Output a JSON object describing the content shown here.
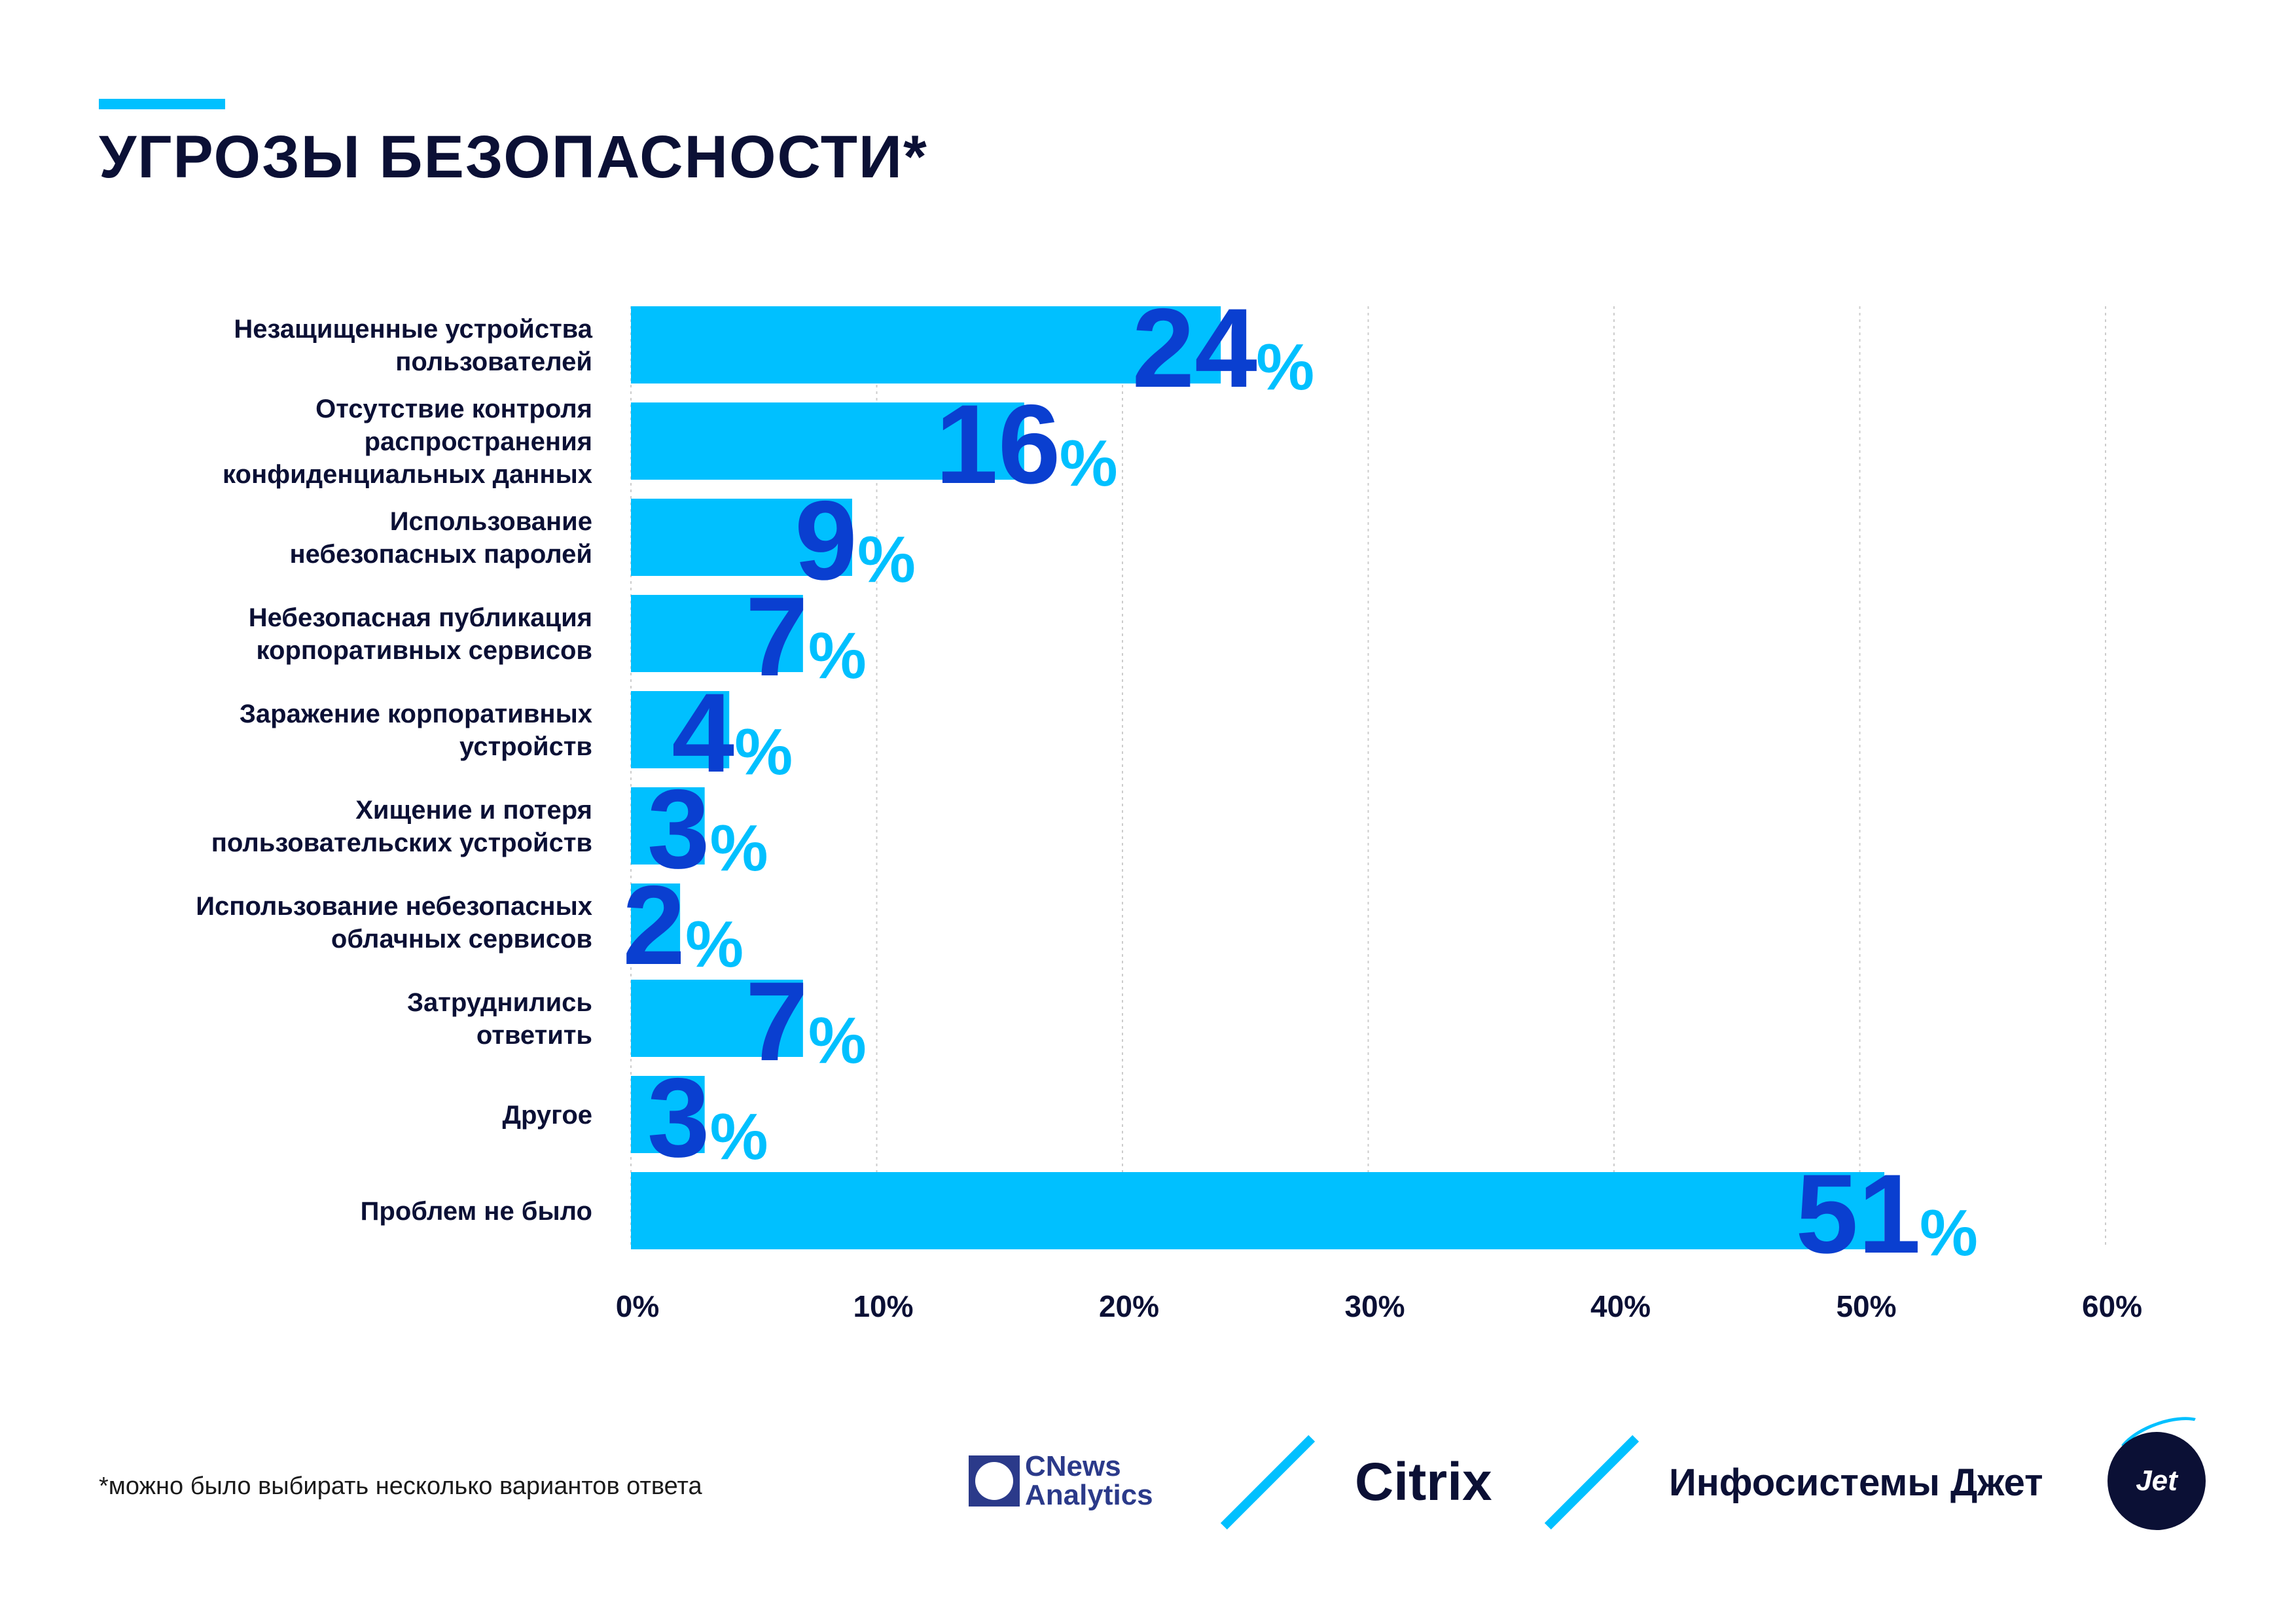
{
  "header": {
    "title": "УГРОЗЫ БЕЗОПАСНОСТИ*"
  },
  "colors": {
    "bar": "#00c0ff",
    "value": "#0a3fd0",
    "percent": "#00c0ff",
    "text": "#0b1035",
    "grid": "#cccccc"
  },
  "chart_data": {
    "type": "bar",
    "orientation": "horizontal",
    "title": "УГРОЗЫ БЕЗОПАСНОСТИ*",
    "categories": [
      [
        "Незащищенные устройства",
        "пользователей"
      ],
      [
        "Отсутствие контроля",
        "распространения",
        "конфиденциальных данных"
      ],
      [
        "Использование",
        "небезопасных паролей"
      ],
      [
        "Небезопасная публикация",
        "корпоративных сервисов"
      ],
      [
        "Заражение корпоративных",
        "устройств"
      ],
      [
        "Хищение и потеря",
        "пользовательских устройств"
      ],
      [
        "Использование небезопасных",
        "облачных сервисов"
      ],
      [
        "Затруднились",
        "ответить"
      ],
      [
        "Другое"
      ],
      [
        "Проблем не было"
      ]
    ],
    "values": [
      24,
      16,
      9,
      7,
      4,
      3,
      2,
      7,
      3,
      51
    ],
    "value_labels": [
      "24",
      "16",
      "9",
      "7",
      "4",
      "3",
      "2",
      "7",
      "3",
      "51"
    ],
    "percent_sign": "%",
    "xlim": [
      0,
      60
    ],
    "xticks": [
      "0%",
      "10%",
      "20%",
      "30%",
      "40%",
      "50%",
      "60%"
    ],
    "xlabel": "",
    "ylabel": "",
    "grid": true
  },
  "footer": {
    "note": "*можно было выбирать несколько вариантов ответа",
    "logo_cnews_line1": "CNews",
    "logo_cnews_line2": "Analytics",
    "logo_citrix": "Citrix",
    "logo_jet_text": "Инфосистемы Джет",
    "logo_jet_badge": "Jet"
  }
}
